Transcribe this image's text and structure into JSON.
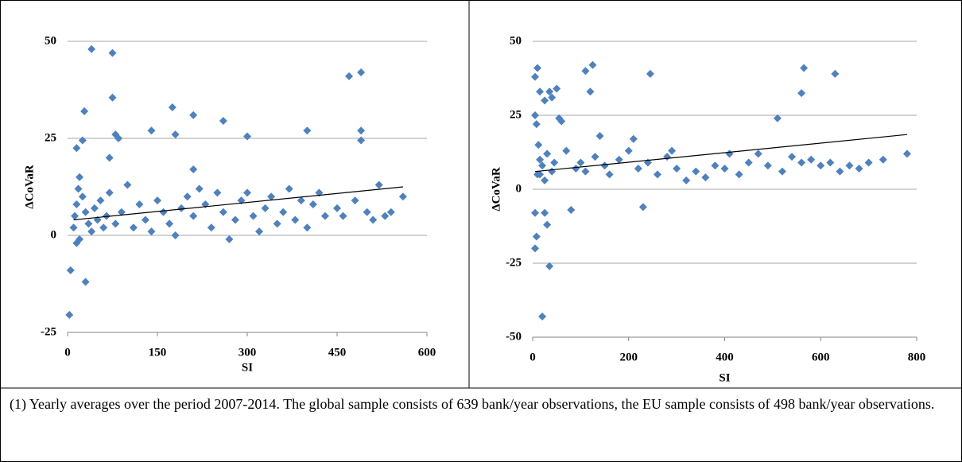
{
  "chart_data": [
    {
      "type": "scatter",
      "xlabel": "SI",
      "ylabel": "ΔCoVaR",
      "color": "#4f81bd",
      "xlim": [
        0,
        600
      ],
      "xticks": [
        0,
        150,
        300,
        450,
        600
      ],
      "ylim": [
        -25,
        50
      ],
      "yticks": [
        -25,
        0,
        25,
        50
      ],
      "grid": true,
      "series": [
        {
          "x": [
            40,
            75,
            75,
            28,
            175,
            210,
            140,
            180,
            260,
            300,
            400,
            470,
            490,
            490,
            490,
            80,
            85,
            25,
            15,
            70,
            210,
            5,
            3,
            30,
            15,
            20,
            10,
            12,
            15,
            18,
            20,
            25,
            30,
            35,
            40,
            45,
            50,
            55,
            60,
            65,
            70,
            80,
            90,
            100,
            110,
            120,
            130,
            140,
            150,
            160,
            170,
            180,
            190,
            200,
            210,
            220,
            230,
            240,
            250,
            260,
            270,
            280,
            290,
            300,
            310,
            320,
            330,
            340,
            350,
            360,
            370,
            380,
            390,
            400,
            410,
            420,
            430,
            450,
            460,
            480,
            500,
            510,
            520,
            530,
            540,
            560
          ],
          "values": [
            48,
            47,
            35.5,
            32,
            33,
            31,
            27,
            26,
            29.5,
            25.5,
            27,
            41,
            42,
            27,
            24.5,
            26,
            25,
            24.5,
            22.5,
            20,
            17,
            -9,
            -20.5,
            -12,
            -2,
            -1,
            2,
            5,
            8,
            12,
            15,
            10,
            6,
            3,
            1,
            7,
            4,
            9,
            2,
            5,
            11,
            3,
            6,
            13,
            2,
            8,
            4,
            1,
            9,
            6,
            3,
            0,
            7,
            10,
            5,
            12,
            8,
            2,
            11,
            6,
            -1,
            4,
            9,
            11,
            5,
            1,
            7,
            10,
            3,
            6,
            12,
            4,
            9,
            2,
            8,
            11,
            5,
            7,
            5,
            9,
            6,
            4,
            13,
            5,
            6,
            10
          ]
        }
      ],
      "trendline": {
        "x": [
          10,
          560
        ],
        "values": [
          4,
          12.5
        ]
      }
    },
    {
      "type": "scatter",
      "xlabel": "SI",
      "ylabel": "ΔCoVaR",
      "color": "#4f81bd",
      "xlim": [
        0,
        800
      ],
      "xticks": [
        0,
        200,
        400,
        600,
        800
      ],
      "ylim": [
        -50,
        50
      ],
      "yticks": [
        -50,
        -25,
        0,
        25,
        50
      ],
      "grid": true,
      "series": [
        {
          "x": [
            10,
            5,
            15,
            25,
            35,
            40,
            50,
            110,
            125,
            120,
            245,
            560,
            565,
            630,
            510,
            5,
            8,
            12,
            15,
            5,
            8,
            5,
            25,
            30,
            35,
            20,
            10,
            15,
            20,
            25,
            30,
            40,
            45,
            55,
            60,
            70,
            80,
            90,
            100,
            110,
            130,
            140,
            150,
            160,
            180,
            200,
            210,
            220,
            230,
            240,
            260,
            280,
            290,
            300,
            320,
            340,
            360,
            380,
            400,
            410,
            430,
            450,
            470,
            490,
            520,
            540,
            560,
            580,
            600,
            620,
            640,
            660,
            680,
            700,
            730,
            780
          ],
          "values": [
            41,
            38,
            33,
            30,
            33,
            31,
            34,
            40,
            42,
            33,
            39,
            32.5,
            41,
            39,
            24,
            25,
            22,
            15,
            5,
            -8,
            -16,
            -20,
            -8,
            -12,
            -26,
            -43,
            5,
            10,
            8,
            3,
            12,
            6,
            9,
            24,
            23,
            13,
            -7,
            7,
            9,
            6,
            11,
            18,
            8,
            5,
            10,
            13,
            17,
            7,
            -6,
            9,
            5,
            11,
            13,
            7,
            3,
            6,
            4,
            8,
            7,
            12,
            5,
            9,
            12,
            8,
            6,
            11,
            9,
            10,
            8,
            9,
            6,
            8,
            7,
            9,
            10,
            12
          ]
        }
      ],
      "trendline": {
        "x": [
          5,
          780
        ],
        "values": [
          6,
          18.5
        ]
      }
    }
  ],
  "note": "(1) Yearly averages over the period 2007-2014. The global sample consists of 639 bank/year observations, the EU sample consists of 498 bank/year observations."
}
